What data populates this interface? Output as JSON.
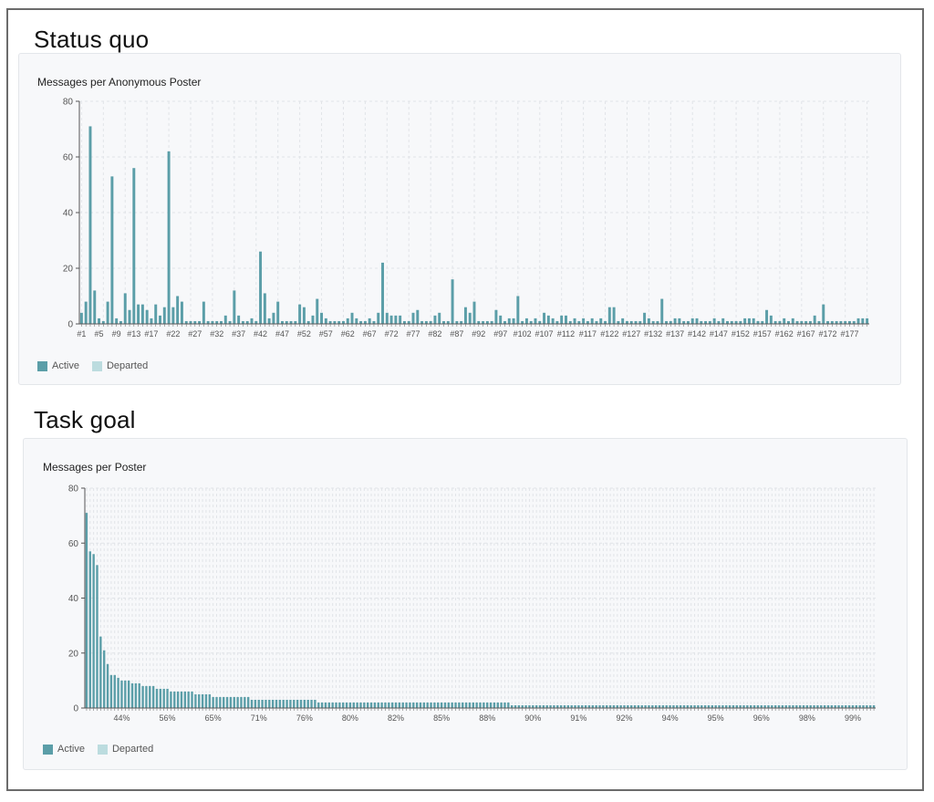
{
  "sections": [
    {
      "title": "Status quo"
    },
    {
      "title": "Task goal"
    }
  ],
  "colors": {
    "active": "#5b9ea8",
    "departed": "#bcdcdf",
    "grid": "#e1e4e8",
    "axis": "#555555",
    "tick_text": "#555555"
  },
  "legend": {
    "active_label": "Active",
    "departed_label": "Departed"
  },
  "chart_data": [
    {
      "type": "bar",
      "title": "Messages per Anonymous Poster",
      "xlabel": "",
      "ylabel": "",
      "ylim": [
        0,
        80
      ],
      "yticks": [
        0,
        20,
        40,
        60,
        80
      ],
      "grid": true,
      "legend_position": "bottom-left",
      "x_tick_labels": [
        "#1",
        "#5",
        "#9",
        "#13",
        "#17",
        "#22",
        "#27",
        "#32",
        "#37",
        "#42",
        "#47",
        "#52",
        "#57",
        "#62",
        "#67",
        "#72",
        "#77",
        "#82",
        "#87",
        "#92",
        "#97",
        "#102",
        "#107",
        "#112",
        "#117",
        "#122",
        "#127",
        "#132",
        "#137",
        "#142",
        "#147",
        "#152",
        "#157",
        "#162",
        "#167",
        "#172",
        "#177"
      ],
      "series": [
        {
          "name": "Active",
          "values": [
            4,
            8,
            71,
            12,
            2,
            1,
            8,
            53,
            2,
            1,
            11,
            5,
            56,
            7,
            7,
            5,
            2,
            7,
            3,
            6,
            62,
            6,
            10,
            8,
            1,
            1,
            1,
            1,
            8,
            1,
            1,
            1,
            1,
            3,
            1,
            12,
            3,
            1,
            1,
            2,
            1,
            26,
            11,
            2,
            4,
            8,
            1,
            1,
            1,
            1,
            7,
            6,
            1,
            3,
            9,
            4,
            2,
            1,
            1,
            1,
            1,
            2,
            4,
            2,
            1,
            1,
            2,
            1,
            4,
            22,
            4,
            3,
            3,
            3,
            1,
            1,
            4,
            5,
            1,
            1,
            1,
            3,
            4,
            1,
            1,
            16,
            1,
            1,
            6,
            4,
            8,
            1,
            1,
            1,
            1,
            5,
            3,
            1,
            2,
            2,
            10,
            1,
            2,
            1,
            2,
            1,
            4,
            3,
            2,
            1,
            3,
            3,
            1,
            2,
            1,
            2,
            1,
            2,
            1,
            2,
            1,
            6,
            6,
            1,
            2,
            1,
            1,
            1,
            1,
            4,
            2,
            1,
            1,
            9,
            1,
            1,
            2,
            2,
            1,
            1,
            2,
            2,
            1,
            1,
            1,
            2,
            1,
            2,
            1,
            1,
            1,
            1,
            2,
            2,
            2,
            1,
            1,
            5,
            3,
            1,
            1,
            2,
            1,
            2,
            1,
            1,
            1,
            1,
            3,
            1,
            7,
            1,
            1,
            1,
            1,
            1,
            1,
            1,
            2,
            2,
            2
          ]
        }
      ]
    },
    {
      "type": "bar",
      "title": "Messages per Poster",
      "xlabel": "",
      "ylabel": "",
      "ylim": [
        0,
        80
      ],
      "yticks": [
        0,
        20,
        40,
        60,
        80
      ],
      "grid": true,
      "legend_position": "bottom-left",
      "x_tick_labels": [
        "44%",
        "56%",
        "65%",
        "71%",
        "76%",
        "80%",
        "82%",
        "85%",
        "88%",
        "90%",
        "91%",
        "92%",
        "94%",
        "95%",
        "96%",
        "98%",
        "99%"
      ],
      "series": [
        {
          "name": "Active",
          "values": [
            71,
            57,
            56,
            52,
            26,
            21,
            16,
            12,
            12,
            11,
            10,
            10,
            10,
            9,
            9,
            9,
            8,
            8,
            8,
            8,
            7,
            7,
            7,
            7,
            6,
            6,
            6,
            6,
            6,
            6,
            6,
            5,
            5,
            5,
            5,
            5,
            4,
            4,
            4,
            4,
            4,
            4,
            4,
            4,
            4,
            4,
            4,
            3,
            3,
            3,
            3,
            3,
            3,
            3,
            3,
            3,
            3,
            3,
            3,
            3,
            3,
            3,
            3,
            3,
            3,
            3,
            2,
            2,
            2,
            2,
            2,
            2,
            2,
            2,
            2,
            2,
            2,
            2,
            2,
            2,
            2,
            2,
            2,
            2,
            2,
            2,
            2,
            2,
            2,
            2,
            2,
            2,
            2,
            2,
            2,
            2,
            2,
            2,
            2,
            2,
            2,
            2,
            2,
            2,
            2,
            2,
            2,
            2,
            2,
            2,
            2,
            2,
            2,
            2,
            2,
            2,
            2,
            2,
            2,
            2,
            2,
            1,
            1,
            1,
            1,
            1,
            1,
            1,
            1,
            1,
            1,
            1,
            1,
            1,
            1,
            1,
            1,
            1,
            1,
            1,
            1,
            1,
            1,
            1,
            1,
            1,
            1,
            1,
            1,
            1,
            1,
            1,
            1,
            1,
            1,
            1,
            1,
            1,
            1,
            1,
            1,
            1,
            1,
            1,
            1,
            1,
            1,
            1,
            1,
            1,
            1,
            1,
            1,
            1,
            1,
            1,
            1,
            1,
            1,
            1,
            1,
            1,
            1,
            1,
            1,
            1,
            1,
            1,
            1,
            1,
            1,
            1,
            1,
            1,
            1,
            1,
            1,
            1,
            1,
            1,
            1,
            1,
            1,
            1,
            1,
            1,
            1,
            1,
            1,
            1,
            1,
            1,
            1,
            1,
            1,
            1,
            1,
            1,
            1,
            1,
            1,
            1,
            1,
            1,
            1
          ]
        }
      ]
    }
  ]
}
